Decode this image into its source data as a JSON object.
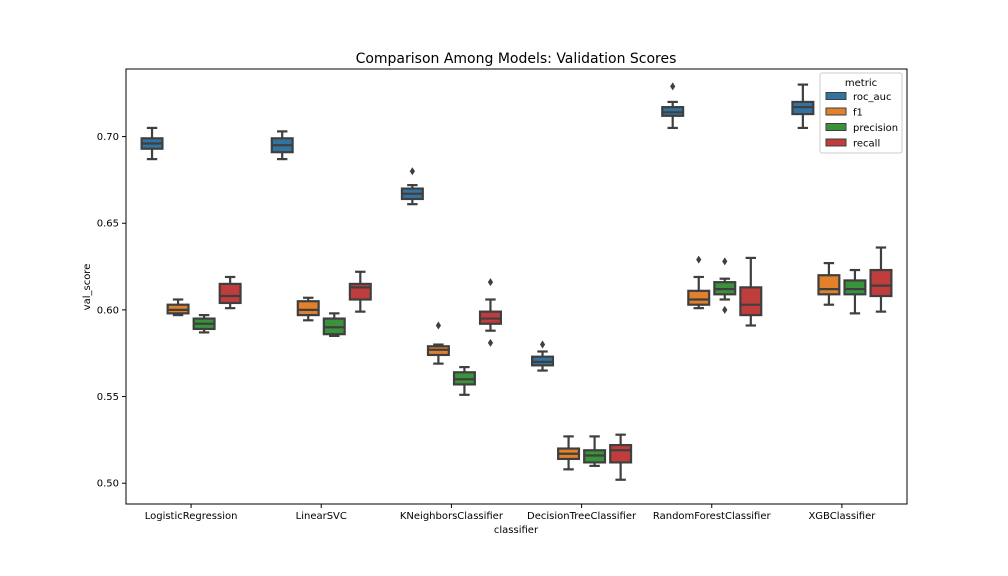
{
  "chart_data": {
    "type": "boxplot",
    "title": "Comparison Among Models: Validation Scores",
    "xlabel": "classifier",
    "ylabel": "val_score",
    "ylim": [
      0.488,
      0.739
    ],
    "yticks": [
      0.5,
      0.55,
      0.6,
      0.65,
      0.7
    ],
    "ytick_labels": [
      "0.50",
      "0.55",
      "0.60",
      "0.65",
      "0.70"
    ],
    "categories": [
      "LogisticRegression",
      "LinearSVC",
      "KNeighborsClassifier",
      "DecisionTreeClassifier",
      "RandomForestClassifier",
      "XGBClassifier"
    ],
    "legend": {
      "title": "metric",
      "position": "top-right"
    },
    "series": [
      {
        "name": "roc_auc",
        "color": "#3274a1",
        "boxes": [
          {
            "whislo": 0.687,
            "q1": 0.693,
            "med": 0.696,
            "q3": 0.699,
            "whishi": 0.705,
            "fliers": []
          },
          {
            "whislo": 0.687,
            "q1": 0.691,
            "med": 0.695,
            "q3": 0.699,
            "whishi": 0.703,
            "fliers": []
          },
          {
            "whislo": 0.661,
            "q1": 0.664,
            "med": 0.667,
            "q3": 0.67,
            "whishi": 0.672,
            "fliers": [
              0.68
            ]
          },
          {
            "whislo": 0.565,
            "q1": 0.568,
            "med": 0.57,
            "q3": 0.573,
            "whishi": 0.576,
            "fliers": [
              0.58
            ]
          },
          {
            "whislo": 0.705,
            "q1": 0.712,
            "med": 0.714,
            "q3": 0.717,
            "whishi": 0.72,
            "fliers": [
              0.729
            ]
          },
          {
            "whislo": 0.705,
            "q1": 0.713,
            "med": 0.717,
            "q3": 0.72,
            "whishi": 0.73,
            "fliers": []
          }
        ]
      },
      {
        "name": "f1",
        "color": "#e1812c",
        "boxes": [
          {
            "whislo": 0.597,
            "q1": 0.598,
            "med": 0.6,
            "q3": 0.603,
            "whishi": 0.606,
            "fliers": []
          },
          {
            "whislo": 0.594,
            "q1": 0.597,
            "med": 0.6,
            "q3": 0.605,
            "whishi": 0.607,
            "fliers": []
          },
          {
            "whislo": 0.569,
            "q1": 0.574,
            "med": 0.577,
            "q3": 0.579,
            "whishi": 0.58,
            "fliers": [
              0.591
            ]
          },
          {
            "whislo": 0.508,
            "q1": 0.514,
            "med": 0.517,
            "q3": 0.52,
            "whishi": 0.527,
            "fliers": []
          },
          {
            "whislo": 0.601,
            "q1": 0.603,
            "med": 0.606,
            "q3": 0.611,
            "whishi": 0.619,
            "fliers": [
              0.629
            ]
          },
          {
            "whislo": 0.603,
            "q1": 0.609,
            "med": 0.612,
            "q3": 0.62,
            "whishi": 0.627,
            "fliers": []
          }
        ]
      },
      {
        "name": "precision",
        "color": "#3a923a",
        "boxes": [
          {
            "whislo": 0.587,
            "q1": 0.589,
            "med": 0.592,
            "q3": 0.595,
            "whishi": 0.597,
            "fliers": []
          },
          {
            "whislo": 0.585,
            "q1": 0.586,
            "med": 0.59,
            "q3": 0.595,
            "whishi": 0.598,
            "fliers": []
          },
          {
            "whislo": 0.551,
            "q1": 0.557,
            "med": 0.56,
            "q3": 0.564,
            "whishi": 0.567,
            "fliers": []
          },
          {
            "whislo": 0.51,
            "q1": 0.512,
            "med": 0.516,
            "q3": 0.519,
            "whishi": 0.527,
            "fliers": []
          },
          {
            "whislo": 0.606,
            "q1": 0.609,
            "med": 0.612,
            "q3": 0.616,
            "whishi": 0.618,
            "fliers": [
              0.628,
              0.6
            ]
          },
          {
            "whislo": 0.598,
            "q1": 0.609,
            "med": 0.612,
            "q3": 0.617,
            "whishi": 0.623,
            "fliers": []
          }
        ]
      },
      {
        "name": "recall",
        "color": "#c03d3e",
        "boxes": [
          {
            "whislo": 0.601,
            "q1": 0.604,
            "med": 0.608,
            "q3": 0.615,
            "whishi": 0.619,
            "fliers": []
          },
          {
            "whislo": 0.599,
            "q1": 0.606,
            "med": 0.613,
            "q3": 0.615,
            "whishi": 0.622,
            "fliers": []
          },
          {
            "whislo": 0.588,
            "q1": 0.592,
            "med": 0.595,
            "q3": 0.599,
            "whishi": 0.606,
            "fliers": [
              0.616,
              0.581
            ]
          },
          {
            "whislo": 0.502,
            "q1": 0.512,
            "med": 0.519,
            "q3": 0.522,
            "whishi": 0.528,
            "fliers": []
          },
          {
            "whislo": 0.591,
            "q1": 0.597,
            "med": 0.603,
            "q3": 0.613,
            "whishi": 0.63,
            "fliers": []
          },
          {
            "whislo": 0.599,
            "q1": 0.608,
            "med": 0.614,
            "q3": 0.623,
            "whishi": 0.636,
            "fliers": []
          }
        ]
      }
    ]
  }
}
